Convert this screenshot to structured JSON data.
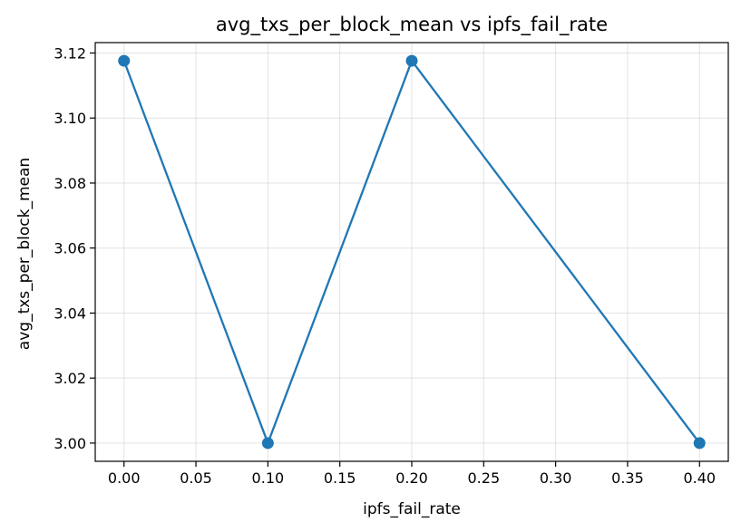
{
  "chart_data": {
    "type": "line",
    "title": "avg_txs_per_block_mean vs ipfs_fail_rate",
    "xlabel": "ipfs_fail_rate",
    "ylabel": "avg_txs_per_block_mean",
    "xlim": [
      -0.02,
      0.42
    ],
    "ylim": [
      2.9944,
      3.1232
    ],
    "x_ticks": [
      "0.00",
      "0.05",
      "0.10",
      "0.15",
      "0.20",
      "0.25",
      "0.30",
      "0.35",
      "0.40"
    ],
    "y_ticks": [
      "3.00",
      "3.02",
      "3.04",
      "3.06",
      "3.08",
      "3.10",
      "3.12"
    ],
    "grid": true,
    "series": [
      {
        "x": [
          0.0,
          0.1,
          0.2,
          0.4
        ],
        "y": [
          3.1176,
          3.0,
          3.1176,
          3.0
        ],
        "color": "#1f77b4",
        "marker": "circle"
      }
    ]
  }
}
